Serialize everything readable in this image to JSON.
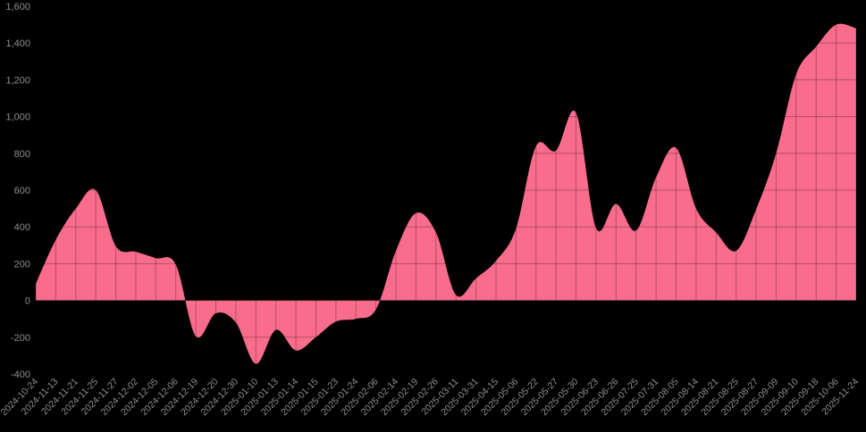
{
  "chart_data": {
    "type": "area",
    "title": "",
    "xlabel": "",
    "ylabel": "",
    "categories": [
      "2024-10-24",
      "2024-11-13",
      "2024-11-21",
      "2024-11-25",
      "2024-11-27",
      "2024-12-02",
      "2024-12-05",
      "2024-12-06",
      "2024-12-19",
      "2024-12-20",
      "2024-12-30",
      "2025-01-10",
      "2025-01-13",
      "2025-01-14",
      "2025-01-15",
      "2025-01-23",
      "2025-01-24",
      "2025-02-06",
      "2025-02-14",
      "2025-02-19",
      "2025-02-26",
      "2025-03-11",
      "2025-03-31",
      "2025-04-15",
      "2025-05-06",
      "2025-05-22",
      "2025-05-27",
      "2025-05-30",
      "2025-06-23",
      "2025-06-26",
      "2025-07-25",
      "2025-07-31",
      "2025-08-05",
      "2025-08-14",
      "2025-08-21",
      "2025-08-25",
      "2025-08-27",
      "2025-09-09",
      "2025-09-10",
      "2025-09-18",
      "2025-10-06",
      "2025-11-24"
    ],
    "values": [
      90,
      330,
      500,
      600,
      295,
      265,
      230,
      195,
      -195,
      -70,
      -120,
      -345,
      -160,
      -272,
      -200,
      -115,
      -100,
      -50,
      270,
      475,
      370,
      30,
      120,
      215,
      390,
      840,
      815,
      1020,
      395,
      525,
      380,
      670,
      830,
      500,
      370,
      270,
      495,
      800,
      1230,
      1380,
      1500,
      1480
    ],
    "ylim": [
      -400,
      1600
    ],
    "y_tick_values": [
      -400,
      -200,
      0,
      200,
      400,
      600,
      800,
      1000,
      1200,
      1400,
      1600
    ],
    "y_tick_labels": [
      "-400",
      "-200",
      "0",
      "200",
      "400",
      "600",
      "800",
      "1,000",
      "1,200",
      "1,400",
      "1,600"
    ],
    "grid": true,
    "legend": false,
    "x_label_rotation_deg": -45,
    "colors": {
      "background": "#000000",
      "area_fill": "#F96C8C",
      "grid_over_fill": "rgba(0,0,0,0.28)",
      "axis_label": "#8f8f8f"
    }
  }
}
